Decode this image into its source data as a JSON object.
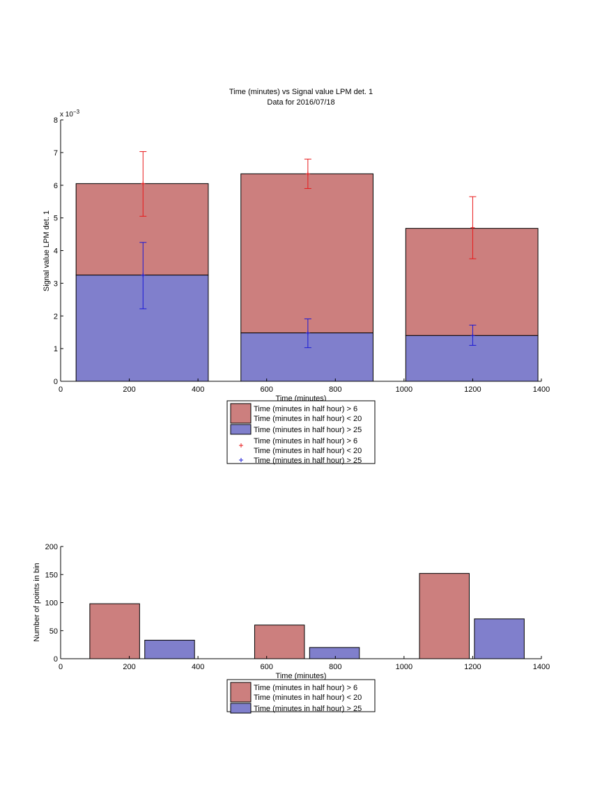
{
  "colors": {
    "bar_upper": "#CC7F7E",
    "bar_lower": "#807FCC",
    "err_upper": "#E8191B",
    "err_lower": "#1A19D6"
  },
  "chart_data": [
    {
      "type": "bar",
      "stacked": true,
      "title": "Time (minutes) vs Signal value LPM det. 1",
      "subtitle": "Data for 2016/07/18",
      "xlabel": "Time (minutes)",
      "ylabel": "Signal value LPM det. 1",
      "scale_label": "x 10",
      "scale_exponent": "−3",
      "xlim": [
        0,
        1400
      ],
      "ylim": [
        0,
        8
      ],
      "xticks": [
        0,
        200,
        400,
        600,
        800,
        1000,
        1200,
        1400
      ],
      "yticks": [
        0,
        1,
        2,
        3,
        4,
        5,
        6,
        7,
        8
      ],
      "grid": false,
      "bars": [
        {
          "x_start": 45,
          "x_end": 430,
          "lower": 3.25,
          "total": 6.05
        },
        {
          "x_start": 525,
          "x_end": 910,
          "lower": 1.48,
          "total": 6.35
        },
        {
          "x_start": 1005,
          "x_end": 1390,
          "lower": 1.4,
          "total": 4.68
        }
      ],
      "errorbars": [
        {
          "x": 240,
          "center": 6.05,
          "low": 5.05,
          "high": 7.03
        },
        {
          "x": 720,
          "center": 6.35,
          "low": 5.9,
          "high": 6.8
        },
        {
          "x": 1200,
          "center": 4.7,
          "low": 3.75,
          "high": 5.65
        },
        {
          "x": 240,
          "center": 3.25,
          "low": 2.22,
          "high": 4.25
        },
        {
          "x": 720,
          "center": 1.48,
          "low": 1.03,
          "high": 1.91
        },
        {
          "x": 1200,
          "center": 1.4,
          "low": 1.1,
          "high": 1.72
        }
      ],
      "legend": {
        "position": "below",
        "entries": [
          {
            "kind": "patch",
            "color": "bar_upper",
            "lines": [
              "Time (minutes in half hour) > 6",
              "Time (minutes in half hour) < 20"
            ]
          },
          {
            "kind": "patch",
            "color": "bar_lower",
            "lines": [
              "Time (minutes in half hour) > 25"
            ]
          },
          {
            "kind": "marker",
            "color": "err_upper",
            "lines": [
              "Time (minutes in half hour) > 6",
              "Time (minutes in half hour) < 20"
            ]
          },
          {
            "kind": "marker",
            "color": "err_lower",
            "lines": [
              "Time (minutes in half hour) > 25"
            ]
          }
        ]
      }
    },
    {
      "type": "bar",
      "grouped": true,
      "title": "",
      "xlabel": "Time (minutes)",
      "ylabel": "Number of points in bin",
      "xlim": [
        0,
        1400
      ],
      "ylim": [
        0,
        200
      ],
      "xticks": [
        0,
        200,
        400,
        600,
        800,
        1000,
        1200,
        1400
      ],
      "yticks": [
        0,
        50,
        100,
        150,
        200
      ],
      "grid": false,
      "bars": [
        {
          "x_start": 85,
          "x_end": 230,
          "value": 98,
          "color": "bar_upper"
        },
        {
          "x_start": 245,
          "x_end": 390,
          "value": 33,
          "color": "bar_lower"
        },
        {
          "x_start": 565,
          "x_end": 710,
          "value": 60,
          "color": "bar_upper"
        },
        {
          "x_start": 725,
          "x_end": 870,
          "value": 20,
          "color": "bar_lower"
        },
        {
          "x_start": 1045,
          "x_end": 1190,
          "value": 152,
          "color": "bar_upper"
        },
        {
          "x_start": 1205,
          "x_end": 1350,
          "value": 71,
          "color": "bar_lower"
        }
      ],
      "legend": {
        "position": "below",
        "entries": [
          {
            "kind": "patch",
            "color": "bar_upper",
            "lines": [
              "Time (minutes in half hour) > 6",
              "Time (minutes in half hour) < 20"
            ]
          },
          {
            "kind": "patch",
            "color": "bar_lower",
            "lines": [
              "Time (minutes in half hour) > 25"
            ]
          }
        ]
      }
    }
  ]
}
